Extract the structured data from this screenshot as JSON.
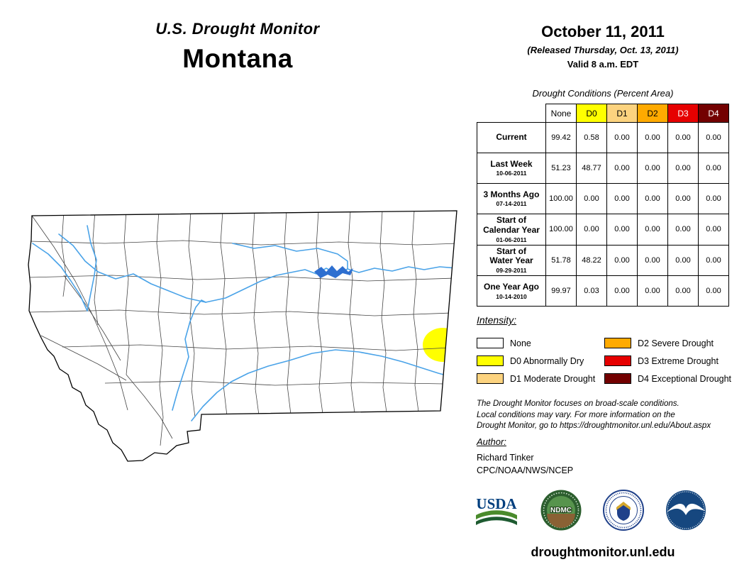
{
  "header": {
    "title": "U.S. Drought Monitor",
    "state": "Montana",
    "date": "October 11, 2011",
    "released": "(Released Thursday, Oct. 13, 2011)",
    "valid": "Valid 8 a.m. EDT"
  },
  "table": {
    "title": "Drought Conditions (Percent Area)",
    "columns": [
      "None",
      "D0",
      "D1",
      "D2",
      "D3",
      "D4"
    ],
    "header_text_colors": [
      "#000000",
      "#000000",
      "#000000",
      "#000000",
      "#ffffff",
      "#ffffff"
    ],
    "rows": [
      {
        "label": "Current",
        "sublabel": "",
        "values": [
          "99.42",
          "0.58",
          "0.00",
          "0.00",
          "0.00",
          "0.00"
        ]
      },
      {
        "label": "Last Week",
        "sublabel": "10-06-2011",
        "values": [
          "51.23",
          "48.77",
          "0.00",
          "0.00",
          "0.00",
          "0.00"
        ]
      },
      {
        "label": "3 Months Ago",
        "sublabel": "07-14-2011",
        "values": [
          "100.00",
          "0.00",
          "0.00",
          "0.00",
          "0.00",
          "0.00"
        ]
      },
      {
        "label": "Start of\nCalendar Year",
        "sublabel": "01-06-2011",
        "values": [
          "100.00",
          "0.00",
          "0.00",
          "0.00",
          "0.00",
          "0.00"
        ]
      },
      {
        "label": "Start of\nWater Year",
        "sublabel": "09-29-2011",
        "values": [
          "51.78",
          "48.22",
          "0.00",
          "0.00",
          "0.00",
          "0.00"
        ]
      },
      {
        "label": "One Year Ago",
        "sublabel": "10-14-2010",
        "values": [
          "99.97",
          "0.03",
          "0.00",
          "0.00",
          "0.00",
          "0.00"
        ]
      }
    ]
  },
  "legend": {
    "title": "Intensity:",
    "items": [
      {
        "label": "None",
        "color": "#FFFFFF"
      },
      {
        "label": "D0 Abnormally Dry",
        "color": "#FFFF00"
      },
      {
        "label": "D1 Moderate Drought",
        "color": "#FCD37F"
      },
      {
        "label": "D2 Severe Drought",
        "color": "#FFAA00"
      },
      {
        "label": "D3 Extreme Drought",
        "color": "#E60000"
      },
      {
        "label": "D4 Exceptional Drought",
        "color": "#730000"
      }
    ]
  },
  "disclaimer": {
    "line1": "The Drought Monitor focuses on broad-scale conditions.",
    "line2": "Local conditions may vary. For more information on the",
    "line3": "Drought Monitor, go to https://droughtmonitor.unl.edu/About.aspx"
  },
  "author": {
    "heading": "Author:",
    "name": "Richard Tinker",
    "org": "CPC/NOAA/NWS/NCEP"
  },
  "logos": {
    "usda_label": "USDA",
    "ndmc_label": "NDMC"
  },
  "footer": {
    "url": "droughtmonitor.unl.edu"
  }
}
